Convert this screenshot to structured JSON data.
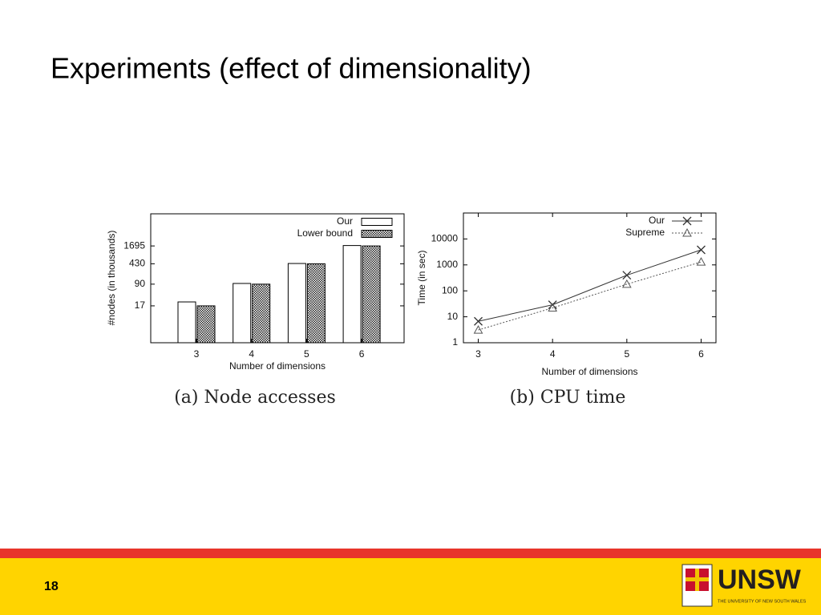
{
  "slide": {
    "title": "Experiments (effect of dimensionality)",
    "page_number": "18",
    "logo_name": "UNSW",
    "logo_subtitle": "THE UNIVERSITY OF NEW SOUTH WALES"
  },
  "chart_data": [
    {
      "type": "bar",
      "caption": "(a) Node accesses",
      "xlabel": "Number of dimensions",
      "ylabel": "#nodes (in thousands)",
      "categories": [
        "3",
        "4",
        "5",
        "6"
      ],
      "series": [
        {
          "name": "Our",
          "color": "#ffffff",
          "values": [
            23,
            95,
            440,
            1750
          ]
        },
        {
          "name": "Lower bound",
          "color": "#777777",
          "values": [
            17,
            90,
            430,
            1695
          ]
        }
      ],
      "yscale": "log",
      "ylim": [
        1,
        20000
      ],
      "yticks": [
        17,
        90,
        430,
        1695
      ],
      "legend": "upper right"
    },
    {
      "type": "line",
      "caption": "(b) CPU time",
      "xlabel": "Number of dimensions",
      "ylabel": "Time (in sec)",
      "x": [
        3,
        4,
        5,
        6
      ],
      "xlim": [
        2.8,
        6.2
      ],
      "xticks": [
        3,
        4,
        5,
        6
      ],
      "series": [
        {
          "name": "Our",
          "color": "#333333",
          "marker": "x",
          "values": [
            6.7,
            29,
            400,
            3800
          ]
        },
        {
          "name": "Supreme",
          "color": "#555555",
          "marker": "triangle",
          "dashed": true,
          "values": [
            3.1,
            22,
            180,
            1300
          ]
        }
      ],
      "yscale": "log",
      "ylim": [
        1,
        100000
      ],
      "yticks": [
        1,
        10,
        100,
        1000,
        10000
      ],
      "legend": "upper right"
    }
  ]
}
